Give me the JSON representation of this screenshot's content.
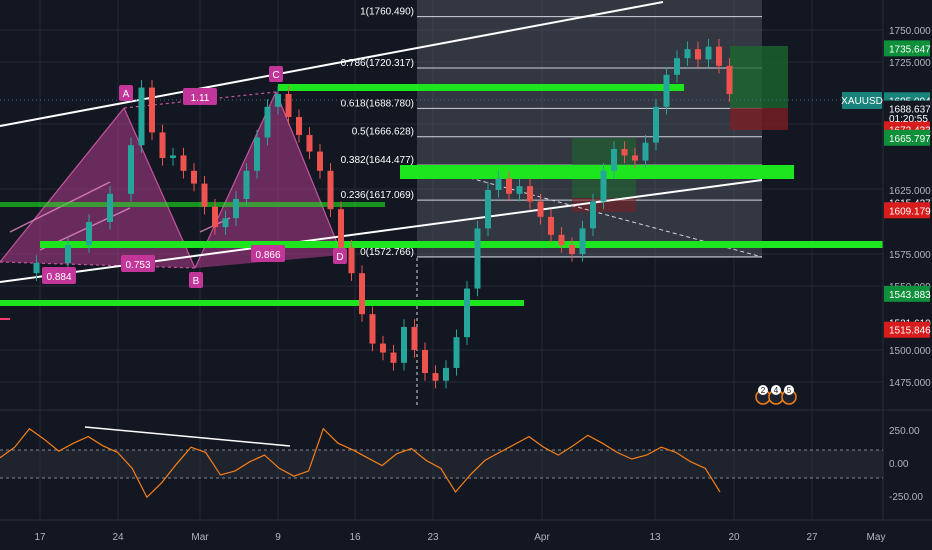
{
  "chart_data": {
    "type": "line",
    "symbol": "XAUUSD",
    "countdown": "01:20:55",
    "x_labels": [
      "17",
      "24",
      "Mar",
      "9",
      "16",
      "23",
      "Apr",
      "13",
      "20",
      "27",
      "May"
    ],
    "y_ticks": [
      1750.0,
      1725.0,
      1625.0,
      1575.0,
      1550.0,
      1500.0,
      1475.0
    ],
    "price_badges": [
      {
        "label": "1735.647",
        "value": 1735.647,
        "color": "#0e8f3a"
      },
      {
        "label": "1695.094",
        "value": 1695.094,
        "color": "#18837b"
      },
      {
        "label": "1688.637",
        "value": 1688.637,
        "color": "#131722"
      },
      {
        "label": "1672.433",
        "value": 1672.433,
        "color": "#d81b1b"
      },
      {
        "label": "1665.797",
        "value": 1665.797,
        "color": "#0e8f3a"
      },
      {
        "label": "1615.427",
        "value": 1615.427,
        "color": "#131722"
      },
      {
        "label": "1609.179",
        "value": 1609.179,
        "color": "#d81b1b"
      },
      {
        "label": "1543.883",
        "value": 1543.883,
        "color": "#0e8f3a"
      },
      {
        "label": "1521.610",
        "value": 1521.61,
        "color": "#131722"
      },
      {
        "label": "1515.846",
        "value": 1515.846,
        "color": "#d81b1b"
      }
    ],
    "fibonacci_levels": [
      {
        "label": "1(1760.490)",
        "value": 1760.49
      },
      {
        "label": "0.786(1720.317)",
        "value": 1720.317
      },
      {
        "label": "0.618(1688.780)",
        "value": 1688.78
      },
      {
        "label": "0.5(1666.628)",
        "value": 1666.628
      },
      {
        "label": "0.382(1644.477)",
        "value": 1644.477
      },
      {
        "label": "0.236(1617.069)",
        "value": 1617.069
      },
      {
        "label": "0(1572.766)",
        "value": 1572.766
      }
    ],
    "pattern_points": [
      "A",
      "B",
      "C",
      "D"
    ],
    "pattern_ratios": [
      "1.11",
      "0.884",
      "0.753",
      "0.866"
    ],
    "event_badges": [
      "2",
      "4",
      "5"
    ],
    "price_series": [
      [
        0,
        1560
      ],
      [
        3,
        1568
      ],
      [
        6,
        1582
      ],
      [
        8,
        1600
      ],
      [
        10,
        1622
      ],
      [
        12,
        1660
      ],
      [
        13,
        1705
      ],
      [
        14,
        1670
      ],
      [
        15,
        1650
      ],
      [
        16,
        1652
      ],
      [
        17,
        1640
      ],
      [
        18,
        1630
      ],
      [
        19,
        1612
      ],
      [
        20,
        1596
      ],
      [
        21,
        1603
      ],
      [
        22,
        1618
      ],
      [
        23,
        1640
      ],
      [
        24,
        1666
      ],
      [
        25,
        1690
      ],
      [
        26,
        1700
      ],
      [
        27,
        1682
      ],
      [
        28,
        1668
      ],
      [
        29,
        1655
      ],
      [
        30,
        1640
      ],
      [
        31,
        1610
      ],
      [
        32,
        1580
      ],
      [
        33,
        1560
      ],
      [
        34,
        1528
      ],
      [
        35,
        1505
      ],
      [
        36,
        1498
      ],
      [
        37,
        1490
      ],
      [
        38,
        1518
      ],
      [
        39,
        1500
      ],
      [
        40,
        1482
      ],
      [
        41,
        1476
      ],
      [
        42,
        1486
      ],
      [
        43,
        1510
      ],
      [
        44,
        1548
      ],
      [
        45,
        1595
      ],
      [
        46,
        1625
      ],
      [
        47,
        1634
      ],
      [
        48,
        1622
      ],
      [
        49,
        1628
      ],
      [
        50,
        1616
      ],
      [
        51,
        1604
      ],
      [
        52,
        1590
      ],
      [
        53,
        1582
      ],
      [
        54,
        1575
      ],
      [
        55,
        1595
      ],
      [
        56,
        1616
      ],
      [
        57,
        1640
      ],
      [
        58,
        1657
      ],
      [
        59,
        1652
      ],
      [
        60,
        1648
      ],
      [
        61,
        1662
      ],
      [
        62,
        1690
      ],
      [
        63,
        1715
      ],
      [
        64,
        1728
      ],
      [
        65,
        1735
      ],
      [
        66,
        1727
      ],
      [
        67,
        1737
      ],
      [
        68,
        1722
      ],
      [
        69,
        1700
      ]
    ],
    "oscillator": {
      "y_ticks": [
        250.0,
        0.0,
        -250.0
      ],
      "values": [
        40,
        120,
        260,
        180,
        90,
        150,
        200,
        130,
        80,
        -40,
        -260,
        -150,
        -10,
        120,
        80,
        -90,
        -60,
        10,
        60,
        -40,
        -100,
        -60,
        260,
        150,
        100,
        40,
        -20,
        70,
        110,
        20,
        -40,
        -220,
        -90,
        20,
        80,
        140,
        200,
        120,
        60,
        130,
        210,
        150,
        80,
        30,
        60,
        120,
        80,
        10,
        -40,
        -220
      ]
    }
  }
}
